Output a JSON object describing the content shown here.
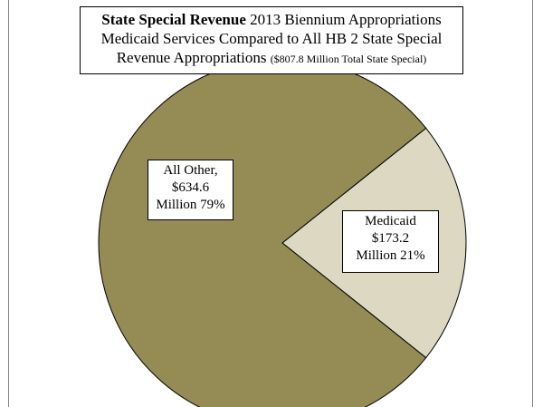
{
  "chart_data": {
    "type": "pie",
    "title": {
      "bold": "State Special Revenue",
      "line1_rest": " 2013 Biennium Appropriations",
      "line2": "Medicaid Services Compared to All HB 2 State Special",
      "line3_main": "Revenue Appropriations ",
      "line3_small": "($807.8 Million Total State Special)"
    },
    "slices": [
      {
        "label": "Medicaid",
        "value": 173.2,
        "percent": 21,
        "color": "#ddd8c2",
        "label_lines": [
          "Medicaid",
          "$173.2",
          "Million 21%"
        ]
      },
      {
        "label": "All Other",
        "value": 634.6,
        "percent": 79,
        "color": "#958b55",
        "label_lines": [
          "All Other,",
          "$634.6",
          "Million 79%"
        ]
      }
    ],
    "stroke_color": "#000000"
  }
}
